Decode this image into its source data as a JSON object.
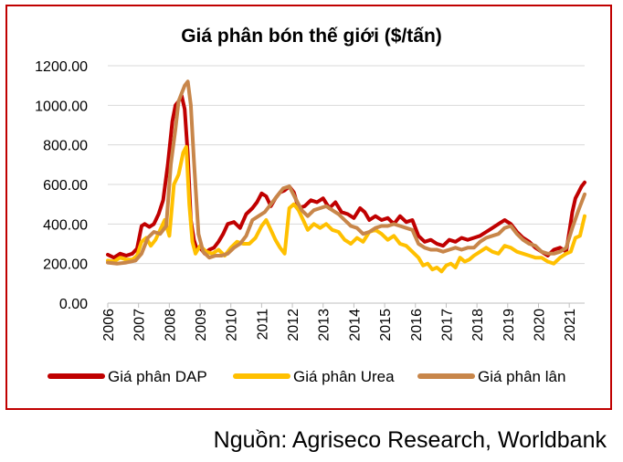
{
  "source_text": "Nguồn: Agriseco Research, Worldbank",
  "chart_data": {
    "type": "line",
    "title": "Giá phân bón thế giới ($/tấn)",
    "xlabel": "",
    "ylabel": "",
    "xlim": [
      2006,
      2021.5
    ],
    "ylim": [
      0,
      1200
    ],
    "yticks": [
      "0.00",
      "200.00",
      "400.00",
      "600.00",
      "800.00",
      "1000.00",
      "1200.00"
    ],
    "xticks": [
      "2006",
      "2007",
      "2008",
      "2009",
      "2010",
      "2011",
      "2012",
      "2013",
      "2014",
      "2015",
      "2016",
      "2017",
      "2018",
      "2019",
      "2020",
      "2021"
    ],
    "grid": true,
    "legend_position": "bottom",
    "series": [
      {
        "name": "Giá phân DAP",
        "color": "#c00000",
        "x": [
          2006.0,
          2006.2,
          2006.4,
          2006.6,
          2006.8,
          2006.95,
          2007.1,
          2007.2,
          2007.35,
          2007.5,
          2007.65,
          2007.8,
          2007.95,
          2008.1,
          2008.2,
          2008.3,
          2008.4,
          2008.5,
          2008.6,
          2008.7,
          2008.8,
          2008.9,
          2009.0,
          2009.15,
          2009.3,
          2009.45,
          2009.6,
          2009.75,
          2009.9,
          2010.1,
          2010.3,
          2010.5,
          2010.7,
          2010.85,
          2011.0,
          2011.15,
          2011.3,
          2011.45,
          2011.6,
          2011.75,
          2011.9,
          2012.05,
          2012.2,
          2012.4,
          2012.6,
          2012.8,
          2013.0,
          2013.2,
          2013.4,
          2013.6,
          2013.8,
          2014.0,
          2014.2,
          2014.35,
          2014.5,
          2014.7,
          2014.9,
          2015.1,
          2015.3,
          2015.5,
          2015.7,
          2015.9,
          2016.1,
          2016.3,
          2016.5,
          2016.7,
          2016.9,
          2017.1,
          2017.3,
          2017.5,
          2017.7,
          2017.9,
          2018.1,
          2018.3,
          2018.5,
          2018.7,
          2018.9,
          2019.1,
          2019.3,
          2019.5,
          2019.7,
          2019.9,
          2020.1,
          2020.3,
          2020.5,
          2020.7,
          2020.9,
          2021.0,
          2021.1,
          2021.2,
          2021.3,
          2021.4,
          2021.5
        ],
        "values": [
          245,
          230,
          250,
          240,
          250,
          275,
          390,
          400,
          385,
          400,
          450,
          520,
          700,
          920,
          1000,
          1020,
          1050,
          980,
          750,
          420,
          320,
          270,
          280,
          250,
          270,
          280,
          310,
          350,
          400,
          410,
          380,
          450,
          480,
          510,
          555,
          540,
          490,
          530,
          560,
          570,
          590,
          560,
          480,
          490,
          520,
          510,
          530,
          480,
          510,
          460,
          450,
          430,
          480,
          460,
          420,
          440,
          420,
          430,
          400,
          440,
          410,
          420,
          340,
          310,
          320,
          300,
          290,
          320,
          310,
          330,
          320,
          330,
          340,
          360,
          380,
          400,
          420,
          400,
          360,
          330,
          310,
          280,
          260,
          240,
          270,
          280,
          260,
          360,
          460,
          530,
          560,
          590,
          610
        ]
      },
      {
        "name": "Giá phân Urea",
        "color": "#ffc000",
        "x": [
          2006.0,
          2006.2,
          2006.4,
          2006.6,
          2006.8,
          2006.95,
          2007.1,
          2007.25,
          2007.4,
          2007.55,
          2007.7,
          2007.85,
          2008.0,
          2008.15,
          2008.3,
          2008.45,
          2008.55,
          2008.65,
          2008.75,
          2008.85,
          2009.0,
          2009.2,
          2009.4,
          2009.6,
          2009.8,
          2010.0,
          2010.2,
          2010.4,
          2010.6,
          2010.8,
          2011.0,
          2011.15,
          2011.3,
          2011.45,
          2011.6,
          2011.75,
          2011.9,
          2012.05,
          2012.2,
          2012.35,
          2012.5,
          2012.7,
          2012.9,
          2013.1,
          2013.3,
          2013.5,
          2013.7,
          2013.9,
          2014.1,
          2014.3,
          2014.5,
          2014.7,
          2014.9,
          2015.1,
          2015.3,
          2015.5,
          2015.7,
          2015.9,
          2016.1,
          2016.25,
          2016.4,
          2016.55,
          2016.7,
          2016.85,
          2017.0,
          2017.15,
          2017.3,
          2017.45,
          2017.6,
          2017.75,
          2017.9,
          2018.1,
          2018.3,
          2018.5,
          2018.7,
          2018.9,
          2019.1,
          2019.3,
          2019.5,
          2019.7,
          2019.9,
          2020.1,
          2020.3,
          2020.5,
          2020.7,
          2020.9,
          2021.05,
          2021.2,
          2021.35,
          2021.5
        ],
        "values": [
          215,
          210,
          230,
          220,
          220,
          240,
          310,
          330,
          290,
          320,
          370,
          420,
          340,
          600,
          650,
          760,
          790,
          500,
          310,
          250,
          290,
          260,
          250,
          270,
          240,
          280,
          310,
          300,
          300,
          330,
          390,
          420,
          370,
          320,
          280,
          250,
          480,
          500,
          470,
          420,
          370,
          400,
          380,
          400,
          370,
          360,
          320,
          300,
          330,
          310,
          360,
          370,
          350,
          320,
          340,
          300,
          290,
          260,
          230,
          190,
          200,
          170,
          180,
          160,
          190,
          200,
          180,
          230,
          210,
          220,
          240,
          260,
          280,
          260,
          250,
          290,
          280,
          260,
          250,
          240,
          230,
          230,
          210,
          200,
          230,
          250,
          260,
          330,
          340,
          440
        ]
      },
      {
        "name": "Giá phân lân",
        "color": "#c8864a",
        "x": [
          2006.0,
          2006.3,
          2006.6,
          2006.9,
          2007.1,
          2007.3,
          2007.5,
          2007.7,
          2007.9,
          2008.05,
          2008.2,
          2008.3,
          2008.4,
          2008.5,
          2008.6,
          2008.7,
          2008.8,
          2008.95,
          2009.1,
          2009.3,
          2009.5,
          2009.7,
          2009.9,
          2010.1,
          2010.3,
          2010.5,
          2010.7,
          2010.9,
          2011.1,
          2011.3,
          2011.5,
          2011.7,
          2011.9,
          2012.1,
          2012.3,
          2012.5,
          2012.7,
          2012.9,
          2013.1,
          2013.3,
          2013.5,
          2013.7,
          2013.9,
          2014.1,
          2014.3,
          2014.5,
          2014.7,
          2014.9,
          2015.1,
          2015.3,
          2015.5,
          2015.7,
          2015.9,
          2016.1,
          2016.3,
          2016.5,
          2016.7,
          2016.9,
          2017.1,
          2017.3,
          2017.5,
          2017.7,
          2017.9,
          2018.1,
          2018.3,
          2018.5,
          2018.7,
          2018.9,
          2019.1,
          2019.3,
          2019.5,
          2019.7,
          2019.9,
          2020.1,
          2020.3,
          2020.5,
          2020.7,
          2020.9,
          2021.1,
          2021.3,
          2021.5
        ],
        "values": [
          205,
          200,
          205,
          215,
          250,
          330,
          360,
          350,
          390,
          700,
          880,
          1020,
          1060,
          1100,
          1120,
          1000,
          720,
          350,
          260,
          230,
          240,
          240,
          250,
          280,
          300,
          340,
          420,
          440,
          460,
          500,
          540,
          580,
          590,
          530,
          470,
          440,
          470,
          480,
          490,
          470,
          450,
          420,
          390,
          380,
          350,
          360,
          380,
          390,
          390,
          400,
          390,
          380,
          370,
          300,
          280,
          270,
          270,
          260,
          270,
          280,
          270,
          280,
          280,
          310,
          330,
          340,
          350,
          380,
          390,
          350,
          320,
          300,
          290,
          260,
          250,
          250,
          260,
          280,
          380,
          470,
          550
        ]
      }
    ]
  }
}
